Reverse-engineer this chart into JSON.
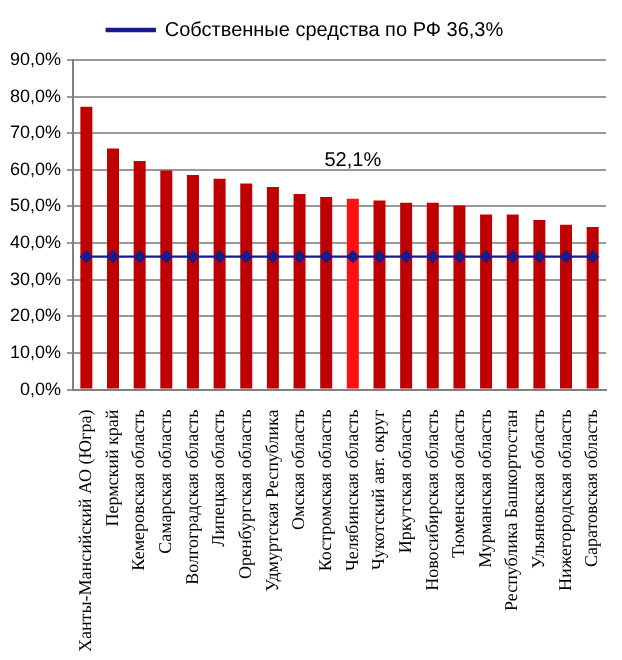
{
  "chart_data": {
    "type": "bar",
    "categories": [
      "Ханты-Мансийский АО (Югра)",
      "Пермский край",
      "Кемеровская область",
      "Самарская область",
      "Волгоградская область",
      "Липецкая область",
      "Оренбургская область",
      "Удмуртская Республика",
      "Омская область",
      "Костромская область",
      "Челябинская область",
      "Чукотский авт. округ",
      "Иркутская область",
      "Новосибирская область",
      "Тюменская область",
      "Мурманская область",
      "Республика Башкортостан",
      "Ульяновская область",
      "Нижегородская область",
      "Саратовская область"
    ],
    "series": [
      {
        "colors": [
          "#c00000",
          "#c00000",
          "#c00000",
          "#c00000",
          "#c00000",
          "#c00000",
          "#c00000",
          "#c00000",
          "#c00000",
          "#c00000",
          "#ff1010",
          "#c00000",
          "#c00000",
          "#c00000",
          "#c00000",
          "#c00000",
          "#c00000",
          "#c00000",
          "#c00000",
          "#c00000"
        ],
        "values": [
          77.2,
          65.8,
          62.4,
          59.8,
          58.6,
          57.6,
          56.3,
          55.3,
          53.4,
          52.6,
          52.1,
          51.6,
          51.0,
          51.0,
          50.3,
          47.8,
          47.8,
          46.3,
          45.0,
          44.4
        ]
      },
      {
        "type": "line",
        "name": "Собственные средства по РФ 36,3%",
        "color": "#1a1a8c",
        "marker": "diamond",
        "values": [
          36.3,
          36.3,
          36.3,
          36.3,
          36.3,
          36.3,
          36.3,
          36.3,
          36.3,
          36.3,
          36.3,
          36.3,
          36.3,
          36.3,
          36.3,
          36.3,
          36.3,
          36.3,
          36.3,
          36.3
        ]
      }
    ],
    "ylim": [
      0,
      90
    ],
    "yticks": [
      {
        "value": 0,
        "label": "0,0%"
      },
      {
        "value": 10,
        "label": "10,0%"
      },
      {
        "value": 20,
        "label": "20,0%"
      },
      {
        "value": 30,
        "label": "30,0%"
      },
      {
        "value": 40,
        "label": "40,0%"
      },
      {
        "value": 50,
        "label": "50,0%"
      },
      {
        "value": 60,
        "label": "60,0%"
      },
      {
        "value": 70,
        "label": "70,0%"
      },
      {
        "value": 80,
        "label": "80,0%"
      },
      {
        "value": 90,
        "label": "90,0%"
      }
    ],
    "annotations": [
      {
        "text": "52,1%",
        "x": "Челябинская область",
        "y": 52.1
      }
    ],
    "grid": "y",
    "legend": "top"
  }
}
